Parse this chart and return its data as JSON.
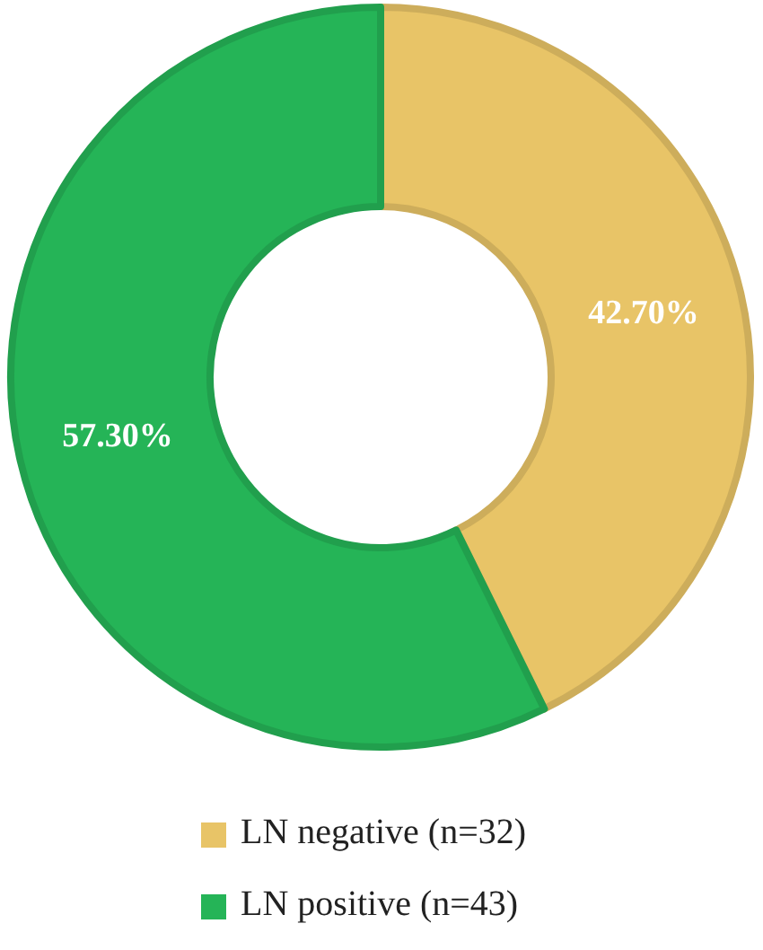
{
  "chart_data": {
    "type": "donut",
    "categories": [
      "LN negative (n=32)",
      "LN positive (n=43)"
    ],
    "values": [
      42.7,
      57.3
    ],
    "colors": [
      "#e8c467",
      "#25b457"
    ],
    "value_labels": [
      "42.70%",
      "57.30%"
    ],
    "legend": "bottom"
  }
}
